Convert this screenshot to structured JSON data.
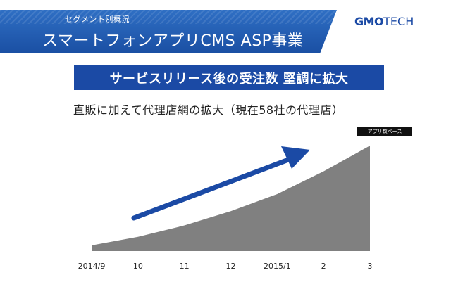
{
  "header": {
    "breadcrumb": "セグメント別概況",
    "title": "スマートフォンアプリCMS ASP事業"
  },
  "logo": {
    "left_text": "GMO",
    "right_text": "TECH"
  },
  "banner": {
    "text": "サービスリリース後の受注数 堅調に拡大"
  },
  "subtitle": "直販に加えて代理店網の拡大（現在58社の代理店）",
  "chart_data": {
    "type": "area",
    "title": "",
    "xlabel": "",
    "ylabel": "",
    "categories": [
      "2014/9",
      "10",
      "11",
      "12",
      "2015/1",
      "2",
      "3"
    ],
    "values": [
      1,
      2.5,
      4.5,
      7,
      10,
      14,
      18.5
    ],
    "ylim": [
      0,
      20
    ],
    "badge": "アプリ数ベース",
    "color": "#808080",
    "arrow_color": "#1b4aa5"
  }
}
